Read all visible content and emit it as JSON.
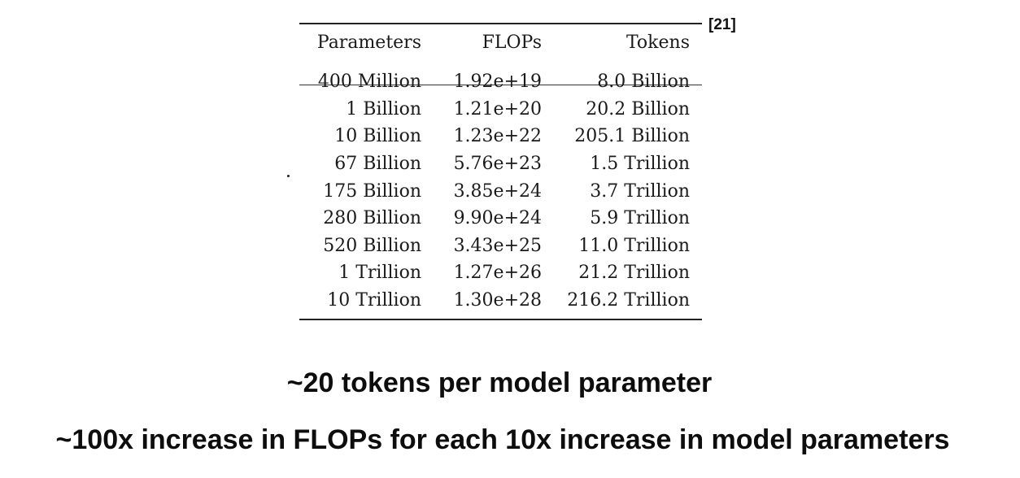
{
  "citation": "[21]",
  "table": {
    "headers": [
      "Parameters",
      "FLOPs",
      "Tokens"
    ],
    "rows": [
      [
        "400 Million",
        "1.92e+19",
        "8.0 Billion"
      ],
      [
        "1 Billion",
        "1.21e+20",
        "20.2 Billion"
      ],
      [
        "10 Billion",
        "1.23e+22",
        "205.1 Billion"
      ],
      [
        "67 Billion",
        "5.76e+23",
        "1.5 Trillion"
      ],
      [
        "175 Billion",
        "3.85e+24",
        "3.7 Trillion"
      ],
      [
        "280 Billion",
        "9.90e+24",
        "5.9 Trillion"
      ],
      [
        "520 Billion",
        "3.43e+25",
        "11.0 Trillion"
      ],
      [
        "1 Trillion",
        "1.27e+26",
        "21.2 Trillion"
      ],
      [
        "10 Trillion",
        "1.30e+28",
        "216.2 Trillion"
      ]
    ]
  },
  "captions": {
    "line1": "~20 tokens per model parameter",
    "line2": "~100x increase in FLOPs for each 10x increase in model parameters"
  }
}
